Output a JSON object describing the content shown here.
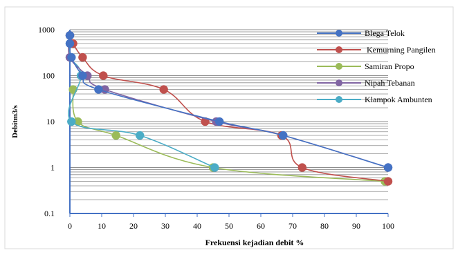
{
  "chart_data": {
    "type": "line",
    "title": "",
    "xlabel": "Frekuensi kejadian debit %",
    "ylabel": "Debitm3/s",
    "xlim": [
      0,
      100
    ],
    "ylim": [
      0.1,
      1000
    ],
    "y_scale": "log",
    "x_ticks": [
      0,
      10,
      20,
      30,
      40,
      50,
      60,
      70,
      80,
      90,
      100
    ],
    "x_tick_labels": [
      "0",
      "10",
      "20",
      "30",
      "40",
      "50",
      "60",
      "70",
      "80",
      "90",
      "100"
    ],
    "y_ticks": [
      0.1,
      1,
      10,
      100,
      1000
    ],
    "y_tick_labels": [
      "0.1",
      "1",
      "10",
      "100",
      "1000"
    ],
    "grid": "horizontal log minor gridlines",
    "legend_position": "top-right",
    "series": [
      {
        "name": "Blega Telok",
        "color": "#4472C4",
        "points": [
          [
            0,
            750
          ],
          [
            0,
            500
          ],
          [
            0.5,
            250
          ],
          [
            4,
            100
          ],
          [
            9,
            50
          ],
          [
            47,
            10
          ],
          [
            67,
            5
          ],
          [
            100,
            1
          ]
        ]
      },
      {
        "name": " Kemurning Pangilen",
        "color": "#C0504D",
        "points": [
          [
            0,
            750
          ],
          [
            1,
            500
          ],
          [
            4,
            250
          ],
          [
            10.5,
            100
          ],
          [
            29.5,
            50
          ],
          [
            42.5,
            10
          ],
          [
            66.5,
            5
          ],
          [
            73,
            1
          ],
          [
            100,
            0.5
          ]
        ]
      },
      {
        "name": "Samiran Propo",
        "color": "#9BBB59",
        "points": [
          [
            1,
            50
          ],
          [
            2.5,
            10
          ],
          [
            14.5,
            5
          ],
          [
            45,
            1
          ],
          [
            99,
            0.5
          ]
        ]
      },
      {
        "name": "Nipah Tebanan",
        "color": "#8064A2",
        "points": [
          [
            0,
            750
          ],
          [
            0,
            250
          ],
          [
            5.5,
            100
          ],
          [
            11,
            50
          ],
          [
            46,
            10
          ],
          [
            67,
            5
          ],
          [
            100,
            1
          ]
        ]
      },
      {
        "name": "Klampok Ambunten",
        "color": "#4BACC6",
        "points": [
          [
            0,
            750
          ],
          [
            0,
            500
          ],
          [
            0,
            250
          ],
          [
            3.5,
            100
          ],
          [
            0.5,
            10
          ],
          [
            22,
            5
          ],
          [
            45.5,
            1
          ]
        ]
      }
    ]
  }
}
